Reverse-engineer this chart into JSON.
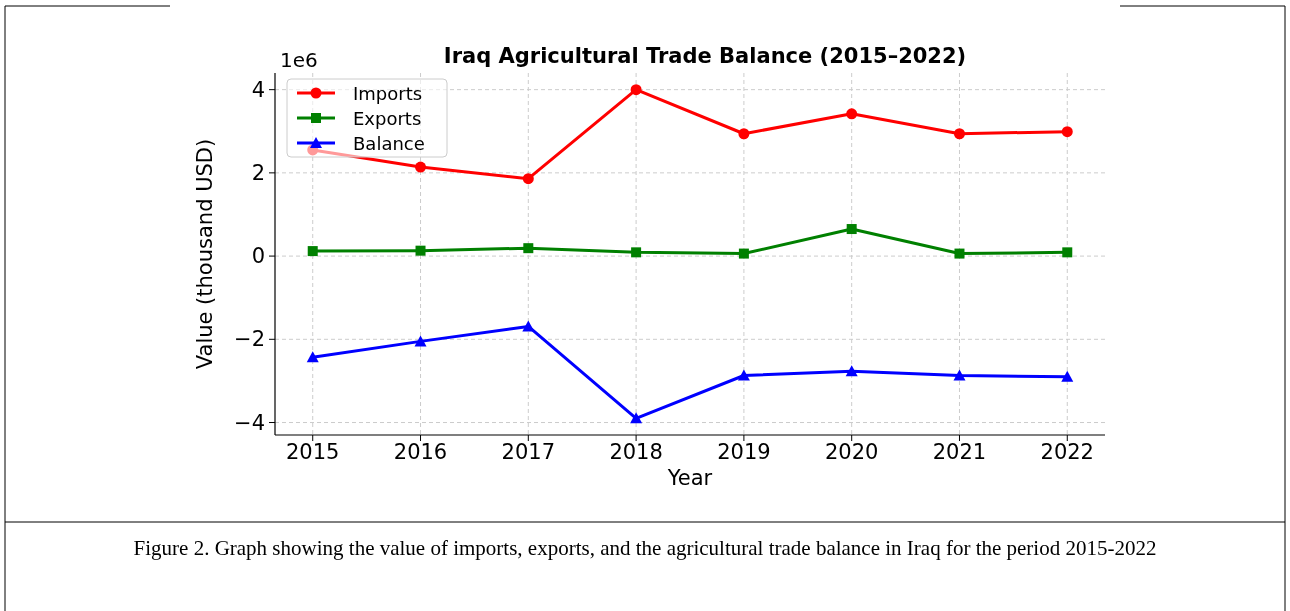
{
  "chart_data": {
    "type": "line",
    "title": "Iraq Agricultural Trade Balance (2015–2022)",
    "xlabel": "Year",
    "ylabel": "Value (thousand USD)",
    "x": [
      2015,
      2016,
      2017,
      2018,
      2019,
      2020,
      2021,
      2022
    ],
    "series": [
      {
        "name": "Imports",
        "color": "#ff0000",
        "marker": "circle",
        "values": [
          2.55,
          2.14,
          1.86,
          4.0,
          2.94,
          3.42,
          2.94,
          2.99
        ]
      },
      {
        "name": "Exports",
        "color": "#008000",
        "marker": "square",
        "values": [
          0.12,
          0.13,
          0.19,
          0.09,
          0.06,
          0.65,
          0.06,
          0.09
        ]
      },
      {
        "name": "Balance",
        "color": "#0000ff",
        "marker": "triangle",
        "values": [
          -2.43,
          -2.05,
          -1.69,
          -3.9,
          -2.87,
          -2.77,
          -2.87,
          -2.9
        ]
      }
    ],
    "xlim": [
      2014.65,
      2022.35
    ],
    "xticks": [
      2015,
      2016,
      2017,
      2018,
      2019,
      2020,
      2021,
      2022
    ],
    "ylim": [
      -4.3,
      4.4
    ],
    "yticks": [
      {
        "value": -4,
        "label": "−4"
      },
      {
        "value": -2,
        "label": "−2"
      },
      0,
      2,
      4
    ],
    "grid": true,
    "legend": "top left",
    "line_style": "solid",
    "annotations": [
      "1e6",
      "Figure 2. Graph showing the value of imports, exports, and the agricultural trade balance in Iraq for the period 2015-2022"
    ]
  }
}
